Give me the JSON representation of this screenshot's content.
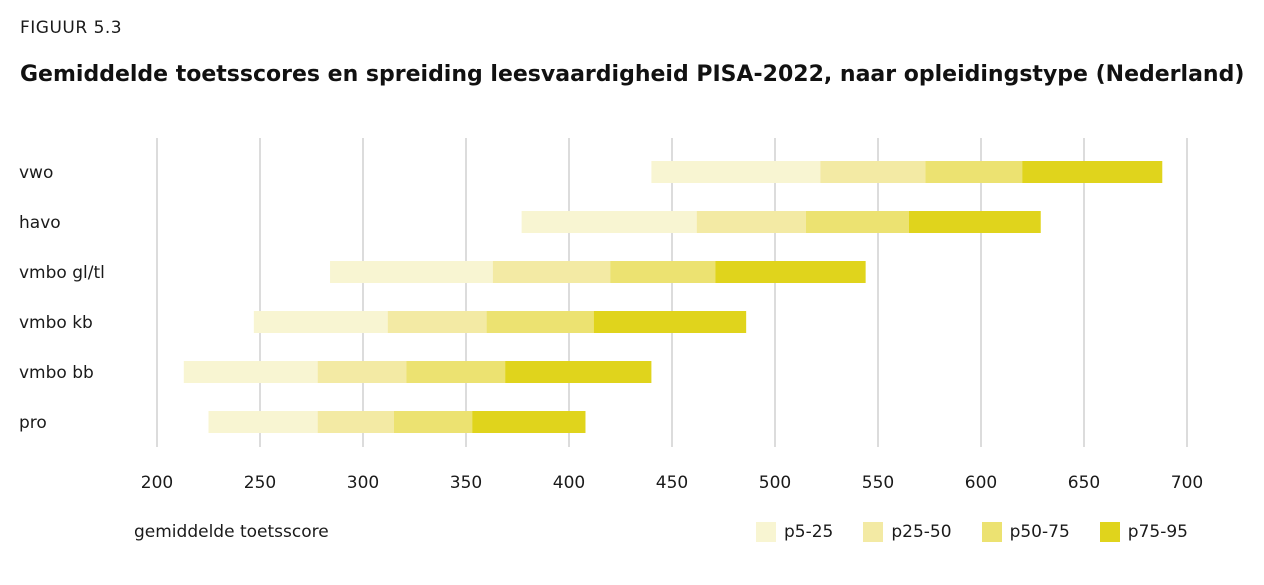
{
  "figure_label": "FIGUUR 5.3",
  "chart_data": {
    "type": "bar",
    "title": "Gemiddelde toetsscores en spreiding leesvaardigheid PISA-2022, naar opleidingstype (Nederland)",
    "xlabel": "gemiddelde toetsscore",
    "ylabel": "",
    "xlim": [
      200,
      700
    ],
    "xticks": [
      200,
      250,
      300,
      350,
      400,
      450,
      500,
      550,
      600,
      650,
      700
    ],
    "grid": "vertical",
    "legend_position": "bottom-right",
    "categories": [
      "vwo",
      "havo",
      "vmbo gl/tl",
      "vmbo kb",
      "vmbo bb",
      "pro"
    ],
    "series": [
      {
        "name": "p5-25",
        "color": "#f8f5d2",
        "ranges": [
          [
            440,
            522
          ],
          [
            377,
            462
          ],
          [
            284,
            363
          ],
          [
            247,
            312
          ],
          [
            213,
            278
          ],
          [
            225,
            278
          ]
        ]
      },
      {
        "name": "p25-50",
        "color": "#f3eaa4",
        "ranges": [
          [
            522,
            573
          ],
          [
            462,
            515
          ],
          [
            363,
            420
          ],
          [
            312,
            360
          ],
          [
            278,
            321
          ],
          [
            278,
            315
          ]
        ]
      },
      {
        "name": "p50-75",
        "color": "#ece271",
        "ranges": [
          [
            573,
            620
          ],
          [
            515,
            565
          ],
          [
            420,
            471
          ],
          [
            360,
            412
          ],
          [
            321,
            369
          ],
          [
            315,
            353
          ]
        ]
      },
      {
        "name": "p75-95",
        "color": "#e0d41c",
        "ranges": [
          [
            620,
            688
          ],
          [
            565,
            629
          ],
          [
            471,
            544
          ],
          [
            412,
            486
          ],
          [
            369,
            440
          ],
          [
            353,
            408
          ]
        ]
      }
    ]
  }
}
